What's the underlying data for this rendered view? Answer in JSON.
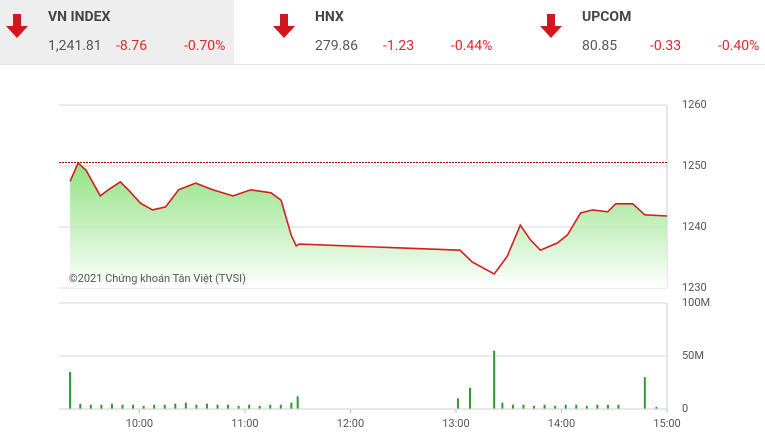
{
  "indices": [
    {
      "name": "VN INDEX",
      "value": "1,241.81",
      "change": "-8.76",
      "percent": "-0.70%"
    },
    {
      "name": "HNX",
      "value": "279.86",
      "change": "-1.23",
      "percent": "-0.44%"
    },
    {
      "name": "UPCOM",
      "value": "80.85",
      "change": "-0.33",
      "percent": "-0.40%"
    }
  ],
  "chart_data": [
    {
      "type": "line",
      "annotation": "©2021 Chứng khoán Tân Việt (TVSI)",
      "reference": 1250.57,
      "reference_color": "#a00000",
      "color": "#d21f1f",
      "x": [
        9.343,
        9.419,
        9.495,
        9.629,
        9.705,
        9.819,
        9.895,
        10.01,
        10.124,
        10.248,
        10.371,
        10.533,
        10.695,
        10.886,
        11.057,
        11.248,
        11.343,
        11.438,
        11.486,
        11.514,
        13.038,
        13.152,
        13.362,
        13.486,
        13.61,
        13.705,
        13.8,
        13.962,
        14.057,
        14.181,
        14.295,
        14.438,
        14.514,
        14.676,
        14.79,
        15.0
      ],
      "values": [
        1247.5,
        1250.5,
        1249.3,
        1245.1,
        1246.1,
        1247.4,
        1246.1,
        1243.9,
        1242.8,
        1243.3,
        1246.1,
        1247.2,
        1246.1,
        1245.1,
        1246.1,
        1245.6,
        1244.4,
        1238.7,
        1236.9,
        1237.2,
        1236.2,
        1234.3,
        1232.3,
        1235.2,
        1240.3,
        1237.9,
        1236.2,
        1237.4,
        1238.7,
        1242.3,
        1242.8,
        1242.5,
        1243.8,
        1243.8,
        1242.0,
        1241.8
      ],
      "xlim": [
        9.238,
        15
      ],
      "ylim": [
        1230,
        1260
      ],
      "yticks": [
        1260,
        1250,
        1240,
        1230
      ],
      "grid": true
    },
    {
      "type": "bar",
      "color": "#2e9a2e",
      "x": [
        9.343,
        9.44,
        9.54,
        9.64,
        9.74,
        9.84,
        9.94,
        10.04,
        10.14,
        10.24,
        10.34,
        10.44,
        10.54,
        10.64,
        10.74,
        10.84,
        10.94,
        11.04,
        11.14,
        11.24,
        11.34,
        11.44,
        11.5,
        13.019,
        13.133,
        13.362,
        13.44,
        13.54,
        13.64,
        13.74,
        13.84,
        13.94,
        14.04,
        14.14,
        14.24,
        14.34,
        14.44,
        14.54,
        14.79,
        14.9
      ],
      "values": [
        35,
        5,
        4,
        4,
        5,
        4,
        4,
        3,
        4,
        4,
        5,
        6,
        4,
        5,
        4,
        4,
        3,
        4,
        3,
        4,
        4,
        6,
        12,
        10,
        20,
        55,
        6,
        4,
        4,
        3,
        4,
        3,
        4,
        4,
        3,
        4,
        4,
        4,
        30,
        2
      ],
      "xlim": [
        9.238,
        15
      ],
      "ylim": [
        0,
        100
      ],
      "yticks": [
        {
          "value": 100,
          "label": "100M"
        },
        {
          "value": 50,
          "label": "50M"
        },
        0
      ],
      "xticks": [
        {
          "value": 10,
          "label": "10:00"
        },
        {
          "value": 11,
          "label": "11:00"
        },
        {
          "value": 12,
          "label": "12:00"
        },
        {
          "value": 13,
          "label": "13:00"
        },
        {
          "value": 14,
          "label": "14:00"
        },
        {
          "value": 15,
          "label": "15:00"
        }
      ],
      "grid": true
    }
  ]
}
